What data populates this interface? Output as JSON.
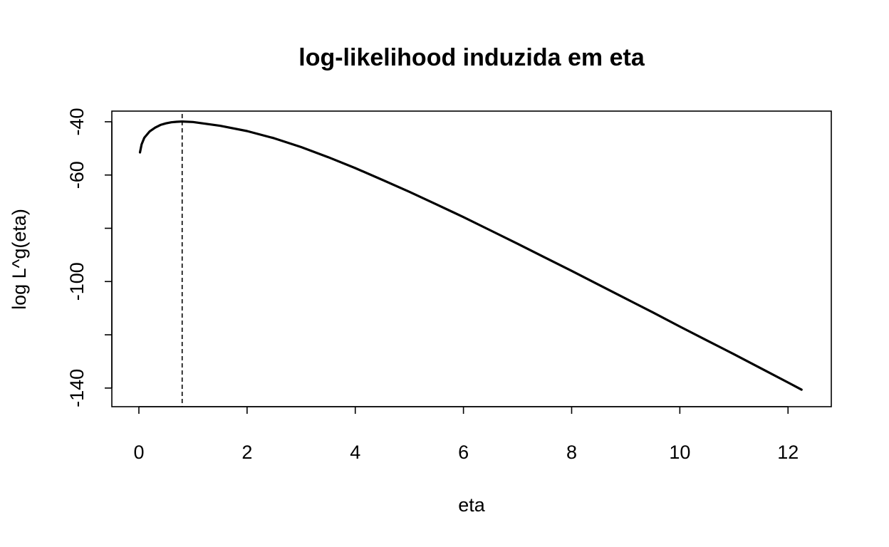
{
  "chart_data": {
    "type": "line",
    "title": "log-likelihood induzida em eta",
    "xlabel": "eta",
    "ylabel": "log L^g(eta)",
    "xlim": [
      -0.5,
      12.8
    ],
    "ylim": [
      -147,
      -36
    ],
    "x_ticks": [
      0,
      2,
      4,
      6,
      8,
      10,
      12
    ],
    "x_tick_labels": [
      "0",
      "2",
      "4",
      "6",
      "8",
      "10",
      "12"
    ],
    "y_ticks": [
      -40,
      -60,
      -80,
      -100,
      -120,
      -140
    ],
    "y_tick_labels": [
      "-40",
      "-60",
      "",
      "-100",
      "",
      "-140"
    ],
    "grid": false,
    "legend": "none",
    "series": [
      {
        "x": [
          0.02,
          0.05,
          0.1,
          0.2,
          0.3,
          0.4,
          0.5,
          0.6,
          0.7,
          0.8,
          1.0,
          1.5,
          2.0,
          2.5,
          3.0,
          3.5,
          4.0,
          4.5,
          5.0,
          5.5,
          6.0,
          6.5,
          7.0,
          7.5,
          8.0,
          8.5,
          9.0,
          9.5,
          10.0,
          10.5,
          11.0,
          11.5,
          12.0,
          12.25
        ],
        "values": [
          -51.5,
          -48.5,
          -46.0,
          -43.6,
          -42.2,
          -41.2,
          -40.6,
          -40.2,
          -40.0,
          -39.9,
          -40.1,
          -41.5,
          -43.5,
          -46.2,
          -49.5,
          -53.3,
          -57.4,
          -61.8,
          -66.3,
          -71.0,
          -75.8,
          -80.8,
          -85.8,
          -90.9,
          -96.0,
          -101.2,
          -106.4,
          -111.6,
          -116.9,
          -122.1,
          -127.3,
          -132.6,
          -137.9,
          -140.6
        ]
      }
    ],
    "vertical_reference_line": {
      "x": 0.8,
      "style": "dashed"
    }
  }
}
